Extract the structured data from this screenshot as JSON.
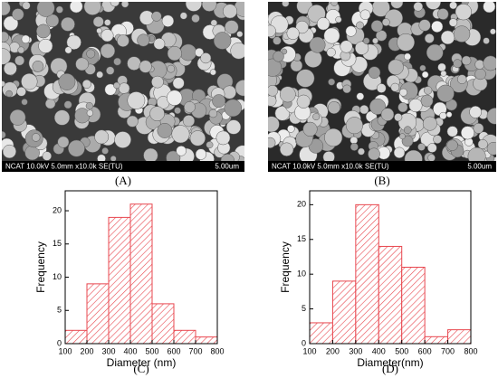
{
  "images": [
    {
      "info": "NCAT 10.0kV 5.0mm x10.0k SE(TU)",
      "scale": "5.00um",
      "label": "(A)"
    },
    {
      "info": "NCAT 10.0kV 5.0mm x10.0k SE(TU)",
      "scale": "5.00um",
      "label": "(B)"
    }
  ],
  "chart_data": [
    {
      "type": "histogram",
      "label": "(C)",
      "xlabel": "Diameter (nm)",
      "ylabel": "Frequency",
      "bins": [
        100,
        200,
        300,
        400,
        500,
        600,
        700,
        800
      ],
      "values": [
        2,
        9,
        19,
        21,
        6,
        2,
        1
      ],
      "color": "#e8474f",
      "xlim": [
        100,
        800
      ],
      "xticks": [
        100,
        200,
        300,
        400,
        500,
        600,
        700,
        800
      ],
      "ylim": [
        0,
        23
      ],
      "yticks": [
        0,
        5,
        10,
        15,
        20
      ]
    },
    {
      "type": "histogram",
      "label": "(D)",
      "xlabel": "Diameter(nm)",
      "ylabel": "Frequency",
      "bins": [
        100,
        200,
        300,
        400,
        500,
        600,
        700,
        800
      ],
      "values": [
        3,
        9,
        20,
        14,
        11,
        1,
        2
      ],
      "color": "#e8474f",
      "xlim": [
        100,
        800
      ],
      "xticks": [
        100,
        200,
        300,
        400,
        500,
        600,
        700,
        800
      ],
      "ylim": [
        0,
        22
      ],
      "yticks": [
        0,
        5,
        10,
        15,
        20
      ]
    }
  ]
}
